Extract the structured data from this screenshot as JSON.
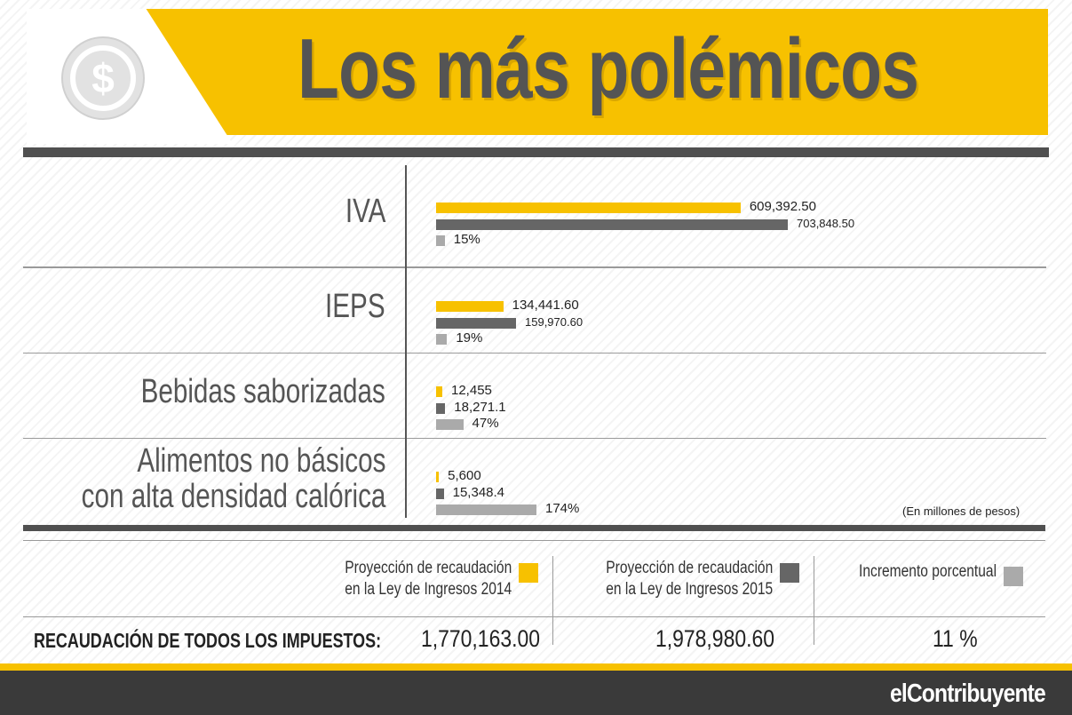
{
  "header": {
    "title": "Los más polémicos"
  },
  "chart_data": {
    "type": "bar",
    "orientation": "horizontal",
    "categories": [
      "IVA",
      "IEPS",
      "Bebidas saborizadas",
      "Alimentos no básicos con alta densidad calórica"
    ],
    "category_lines": [
      [
        "IVA"
      ],
      [
        "IEPS"
      ],
      [
        "Bebidas saborizadas"
      ],
      [
        "Alimentos no básicos",
        "con alta densidad calórica"
      ]
    ],
    "series": [
      {
        "name": "Proyección de recaudación en la Ley de Ingresos 2014",
        "color": "#f7c100",
        "values": [
          609392.5,
          134441.6,
          12455,
          5600
        ],
        "labels": [
          "609,392.50",
          "134,441.60",
          "12,455",
          "5,600"
        ]
      },
      {
        "name": "Proyección de recaudación en la Ley de Ingresos 2015",
        "color": "#666666",
        "values": [
          703848.5,
          159970.6,
          18271.1,
          15348.4
        ],
        "labels": [
          "703,848.50",
          "159,970.60",
          "18,271.1",
          "15,348.4"
        ]
      },
      {
        "name": "Incremento porcentual",
        "color": "#aaaaaa",
        "values": [
          15,
          19,
          47,
          174
        ],
        "labels": [
          "15%",
          "19%",
          "47%",
          "174%"
        ]
      }
    ],
    "unit_note": "(En millones de pesos)",
    "grid": false
  },
  "legend": [
    {
      "lines": [
        "Proyección de recaudación",
        "en la Ley de Ingresos 2014"
      ],
      "color": "#f7c100"
    },
    {
      "lines": [
        "Proyección de recaudación",
        "en la Ley de Ingresos 2015"
      ],
      "color": "#666666"
    },
    {
      "lines": [
        "Incremento porcentual"
      ],
      "color": "#aaaaaa"
    }
  ],
  "totals": {
    "label": "RECAUDACIÓN DE TODOS LOS IMPUESTOS:",
    "value_2014": "1,770,163.00",
    "value_2015": "1,978,980.60",
    "increase": "11 %"
  },
  "footer": {
    "brand": "elContribuyente"
  },
  "colors": {
    "accent": "#f7c100",
    "dark": "#505050",
    "footer": "#3a3a3a"
  }
}
